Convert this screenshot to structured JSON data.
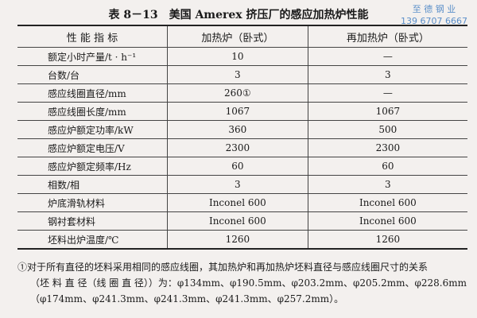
{
  "title": "表 8－13　美国 Amerex 挤压厂的感应加热炉性能",
  "watermark": {
    "line1": "至 德 钢 业",
    "line2": "139 6707 6667"
  },
  "headers": [
    "性 能 指 标",
    "加热炉（卧式）",
    "再加热炉（卧式）"
  ],
  "rows": [
    [
      "额定小时产量/t · h⁻¹",
      "10",
      "—"
    ],
    [
      "台数/台",
      "3",
      "3"
    ],
    [
      "感应线圈直径/mm",
      "260①",
      "—"
    ],
    [
      "感应线圈长度/mm",
      "1067",
      "1067"
    ],
    [
      "感应炉额定功率/kW",
      "360",
      "500"
    ],
    [
      "感应炉额定电压/V",
      "2300",
      "2300"
    ],
    [
      "感应炉额定频率/Hz",
      "60",
      "60"
    ],
    [
      "相数/相",
      "3",
      "3"
    ],
    [
      "炉底滑轨材料",
      "Inconel 600",
      "Inconel 600"
    ],
    [
      "钢衬套材料",
      "Inconel 600",
      "Inconel 600"
    ],
    [
      "坯料出炉温度/℃",
      "1260",
      "1260"
    ]
  ],
  "note": {
    "line1": "①对于所有直径的坯料采用相同的感应线圈，其加热炉和再加热炉坯料直径与感应线圈尺寸的关系",
    "line2": "（坯 料 直 径（线 圈 直 径））为：φ134mm、φ190.5mm、φ203.2mm、φ205.2mm、φ228.6mm",
    "line3": "（φ174mm、φ241.3mm、φ241.3mm、φ241.3mm、φ257.2mm）。"
  }
}
